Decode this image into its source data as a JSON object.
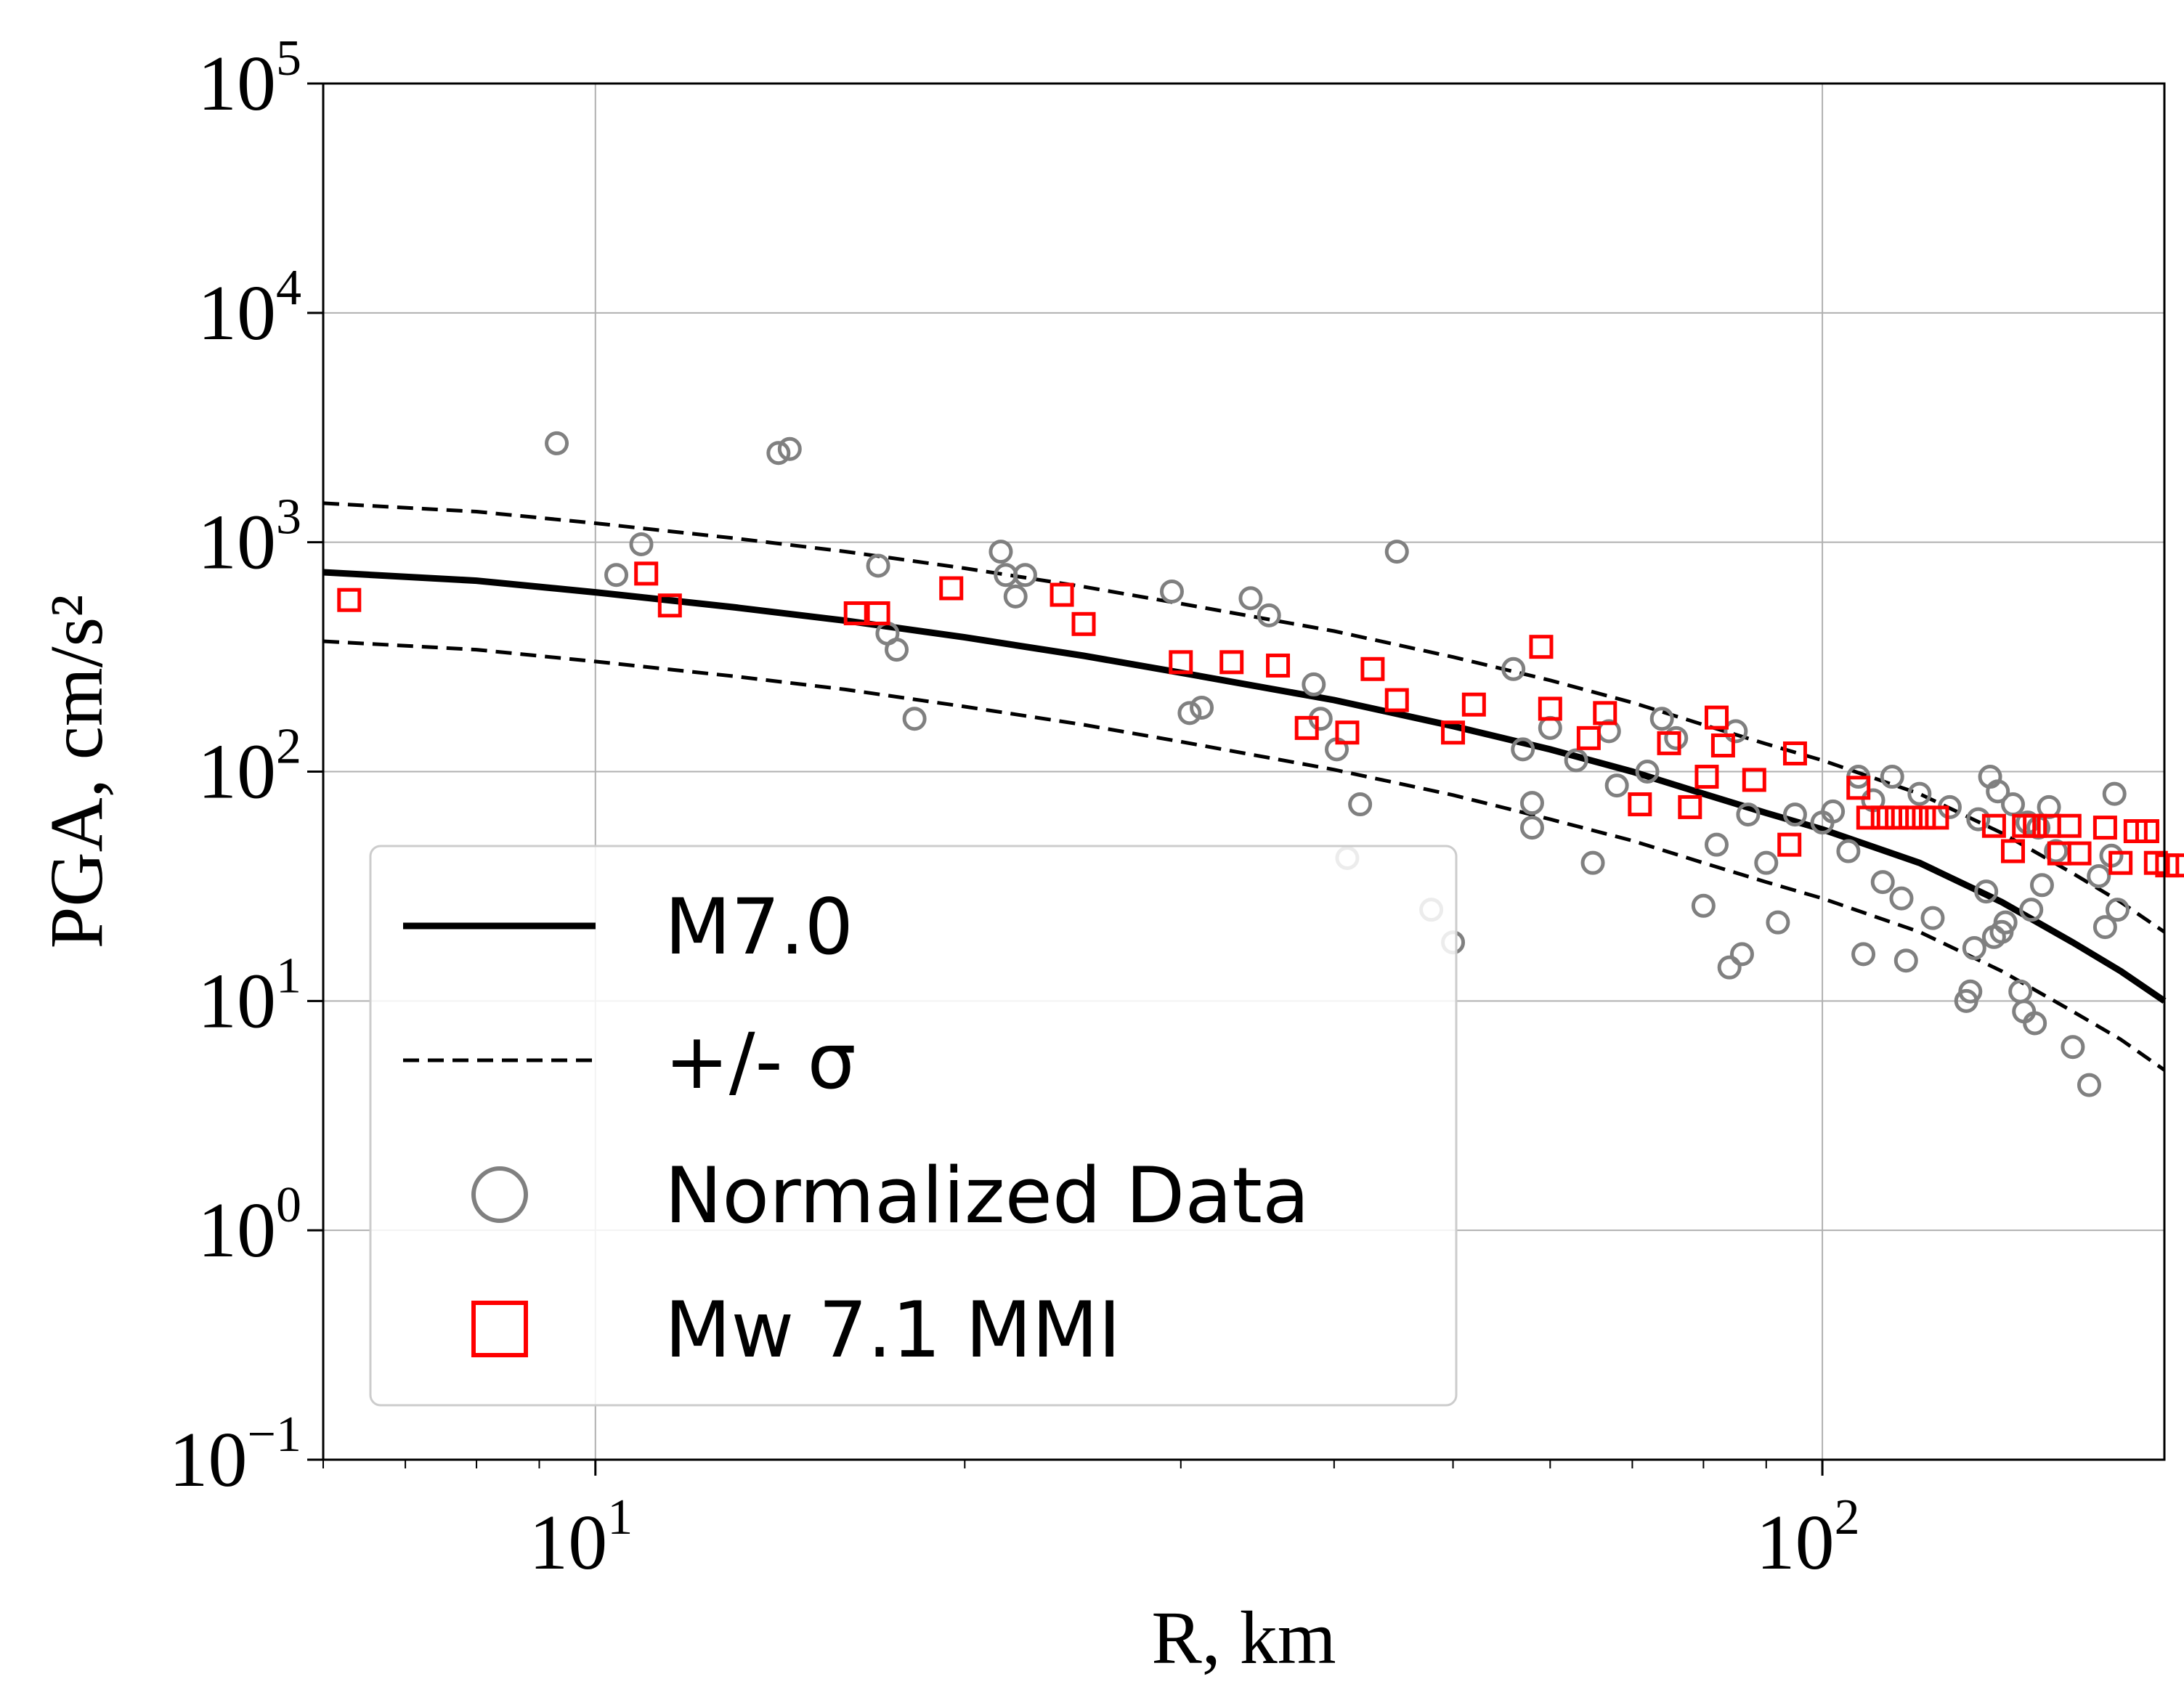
{
  "chart_data": {
    "type": "scatter",
    "x_scale": "log",
    "y_scale": "log",
    "xlim": [
      6,
      190
    ],
    "ylim": [
      0.1,
      100000
    ],
    "xlabel": "R, km",
    "ylabel": "PGA, cm/s²",
    "grid": true,
    "legend_position": "lower-left",
    "x_ticks": [
      {
        "base": "10",
        "exp": "1",
        "value": 10
      },
      {
        "base": "10",
        "exp": "2",
        "value": 100
      }
    ],
    "y_ticks": [
      {
        "base": "10",
        "exp": "−1",
        "value": 0.1
      },
      {
        "base": "10",
        "exp": "0",
        "value": 1
      },
      {
        "base": "10",
        "exp": "1",
        "value": 10
      },
      {
        "base": "10",
        "exp": "2",
        "value": 100
      },
      {
        "base": "10",
        "exp": "3",
        "value": 1000
      },
      {
        "base": "10",
        "exp": "4",
        "value": 10000
      },
      {
        "base": "10",
        "exp": "5",
        "value": 100000
      }
    ],
    "series": [
      {
        "name": "M7.0",
        "kind": "line",
        "style": "solid",
        "color": "#000000",
        "points": [
          [
            6,
            740
          ],
          [
            8,
            680
          ],
          [
            10,
            605
          ],
          [
            13,
            520
          ],
          [
            16,
            455
          ],
          [
            20,
            385
          ],
          [
            25,
            320
          ],
          [
            30,
            270
          ],
          [
            40,
            205
          ],
          [
            50,
            158
          ],
          [
            60,
            125
          ],
          [
            70,
            100
          ],
          [
            80,
            80
          ],
          [
            90,
            66
          ],
          [
            100,
            56
          ],
          [
            120,
            40
          ],
          [
            140,
            27
          ],
          [
            160,
            18
          ],
          [
            175,
            13.5
          ],
          [
            190,
            10
          ]
        ]
      },
      {
        "name": "+/- σ",
        "kind": "line",
        "style": "dashed",
        "color": "#000000",
        "points": [
          [
            6,
            1480
          ],
          [
            8,
            1360
          ],
          [
            10,
            1210
          ],
          [
            13,
            1040
          ],
          [
            16,
            910
          ],
          [
            20,
            770
          ],
          [
            25,
            640
          ],
          [
            30,
            540
          ],
          [
            40,
            410
          ],
          [
            50,
            316
          ],
          [
            60,
            250
          ],
          [
            70,
            200
          ],
          [
            80,
            160
          ],
          [
            90,
            132
          ],
          [
            100,
            112
          ],
          [
            120,
            80
          ],
          [
            140,
            54
          ],
          [
            160,
            36
          ],
          [
            175,
            27
          ],
          [
            190,
            20
          ]
        ]
      },
      {
        "name": "",
        "kind": "line",
        "style": "dashed",
        "color": "#000000",
        "points": [
          [
            6,
            370
          ],
          [
            8,
            340
          ],
          [
            10,
            302
          ],
          [
            13,
            260
          ],
          [
            16,
            228
          ],
          [
            20,
            192
          ],
          [
            25,
            160
          ],
          [
            30,
            135
          ],
          [
            40,
            102
          ],
          [
            50,
            79
          ],
          [
            60,
            62
          ],
          [
            70,
            50
          ],
          [
            80,
            40
          ],
          [
            90,
            33
          ],
          [
            100,
            28
          ],
          [
            120,
            20
          ],
          [
            140,
            13.5
          ],
          [
            160,
            9
          ],
          [
            175,
            6.8
          ],
          [
            190,
            5
          ]
        ]
      },
      {
        "name": "Normalized Data",
        "kind": "scatter",
        "marker": "circle",
        "color": "#808080",
        "points": [
          [
            9.3,
            2700
          ],
          [
            10.4,
            720
          ],
          [
            10.9,
            980
          ],
          [
            14.1,
            2450
          ],
          [
            14.4,
            2550
          ],
          [
            17,
            790
          ],
          [
            17.3,
            400
          ],
          [
            17.6,
            340
          ],
          [
            18.2,
            170
          ],
          [
            21.4,
            910
          ],
          [
            21.6,
            720
          ],
          [
            22,
            580
          ],
          [
            22.4,
            720
          ],
          [
            29.5,
            610
          ],
          [
            30.5,
            180
          ],
          [
            31.2,
            190
          ],
          [
            34.2,
            570
          ],
          [
            35.4,
            480
          ],
          [
            38.5,
            240
          ],
          [
            39,
            170
          ],
          [
            40.2,
            125
          ],
          [
            41,
            42
          ],
          [
            42,
            72
          ],
          [
            45,
            910
          ],
          [
            48,
            25
          ],
          [
            50,
            18
          ],
          [
            56,
            280
          ],
          [
            57,
            125
          ],
          [
            58,
            73
          ],
          [
            58,
            57
          ],
          [
            60,
            155
          ],
          [
            63,
            112
          ],
          [
            65,
            40
          ],
          [
            67,
            150
          ],
          [
            68,
            87
          ],
          [
            72,
            100
          ],
          [
            74,
            170
          ],
          [
            76,
            140
          ],
          [
            80,
            26
          ],
          [
            82,
            48
          ],
          [
            84,
            14
          ],
          [
            85,
            150
          ],
          [
            86,
            16
          ],
          [
            87,
            65
          ],
          [
            90,
            40
          ],
          [
            92,
            22
          ],
          [
            95,
            65
          ],
          [
            100,
            60
          ],
          [
            102,
            67
          ],
          [
            105,
            45
          ],
          [
            107,
            95
          ],
          [
            108,
            16
          ],
          [
            110,
            75
          ],
          [
            112,
            33
          ],
          [
            114,
            95
          ],
          [
            116,
            28
          ],
          [
            117,
            15
          ],
          [
            120,
            80
          ],
          [
            123,
            23
          ],
          [
            127,
            70
          ],
          [
            131,
            10
          ],
          [
            132,
            11
          ],
          [
            133,
            17
          ],
          [
            134,
            62
          ],
          [
            136,
            30
          ],
          [
            137,
            95
          ],
          [
            138,
            19
          ],
          [
            139,
            82
          ],
          [
            140,
            20
          ],
          [
            141,
            22
          ],
          [
            143,
            72
          ],
          [
            145,
            11
          ],
          [
            146,
            9
          ],
          [
            147,
            60
          ],
          [
            148,
            25
          ],
          [
            149,
            8
          ],
          [
            150,
            57
          ],
          [
            151,
            32
          ],
          [
            153,
            70
          ],
          [
            155,
            45
          ],
          [
            160,
            6.3
          ],
          [
            165,
            4.3
          ],
          [
            168,
            35
          ],
          [
            170,
            21
          ],
          [
            172,
            43
          ],
          [
            173,
            80
          ],
          [
            174,
            25
          ]
        ]
      },
      {
        "name": "Mw 7.1 MMI",
        "kind": "scatter",
        "marker": "square",
        "color": "#ff0000",
        "points": [
          [
            6.3,
            560
          ],
          [
            11.0,
            730
          ],
          [
            11.5,
            530
          ],
          [
            16.3,
            490
          ],
          [
            17.0,
            490
          ],
          [
            19.5,
            630
          ],
          [
            24.0,
            590
          ],
          [
            25.0,
            440
          ],
          [
            30.0,
            300
          ],
          [
            33.0,
            300
          ],
          [
            36.0,
            290
          ],
          [
            38.0,
            155
          ],
          [
            41.0,
            148
          ],
          [
            43.0,
            280
          ],
          [
            45.0,
            205
          ],
          [
            50.0,
            148
          ],
          [
            52.0,
            196
          ],
          [
            59.0,
            350
          ],
          [
            60.0,
            188
          ],
          [
            64.5,
            140
          ],
          [
            66.5,
            180
          ],
          [
            71.0,
            72
          ],
          [
            75.0,
            133
          ],
          [
            78.0,
            70
          ],
          [
            80.5,
            95
          ],
          [
            82.0,
            172
          ],
          [
            83.0,
            130
          ],
          [
            88.0,
            92
          ],
          [
            94.0,
            48
          ],
          [
            95.0,
            120
          ],
          [
            107.0,
            85
          ],
          [
            109.0,
            63
          ],
          [
            112.0,
            63
          ],
          [
            115.0,
            63
          ],
          [
            118.0,
            63
          ],
          [
            121.0,
            63
          ],
          [
            124.0,
            63
          ],
          [
            138.0,
            58
          ],
          [
            143.0,
            45
          ],
          [
            146.0,
            58
          ],
          [
            149.0,
            58
          ],
          [
            153.0,
            58
          ],
          [
            156.0,
            44
          ],
          [
            159.0,
            58
          ],
          [
            162.0,
            44
          ],
          [
            170.0,
            57
          ],
          [
            175.0,
            40
          ],
          [
            180.0,
            55
          ],
          [
            184.0,
            55
          ],
          [
            187.0,
            40
          ],
          [
            191.0,
            39
          ],
          [
            195.0,
            39
          ]
        ]
      }
    ],
    "legend": [
      {
        "label": "M7.0",
        "style": "solid-line"
      },
      {
        "label": "+/- σ",
        "style": "dashed-line"
      },
      {
        "label": "Normalized Data",
        "style": "circle",
        "color": "#808080"
      },
      {
        "label": "Mw 7.1 MMI",
        "style": "square",
        "color": "#ff0000"
      }
    ]
  }
}
